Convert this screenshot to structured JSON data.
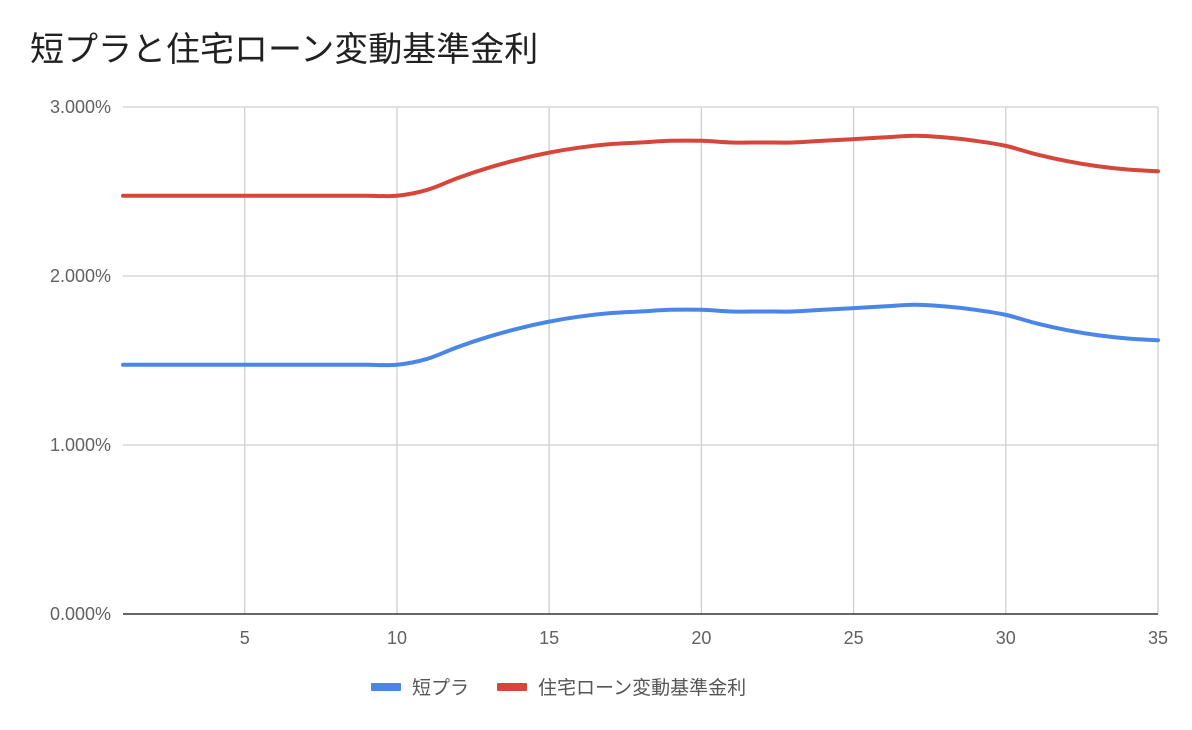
{
  "chart_data": {
    "type": "line",
    "title": "短プラと住宅ローン変動基準金利",
    "xlabel": "",
    "ylabel": "",
    "xlim": [
      1,
      35
    ],
    "ylim": [
      0,
      0.03
    ],
    "x_ticks": [
      5,
      10,
      15,
      20,
      25,
      30,
      35
    ],
    "x_tick_labels": [
      "5",
      "10",
      "15",
      "20",
      "25",
      "30",
      "35"
    ],
    "y_ticks": [
      0,
      0.01,
      0.02,
      0.03
    ],
    "y_tick_labels": [
      "0.000%",
      "1.000%",
      "2.000%",
      "3.000%"
    ],
    "grid": true,
    "legend_position": "bottom",
    "x": [
      1,
      2,
      3,
      4,
      5,
      6,
      7,
      8,
      9,
      10,
      11,
      12,
      13,
      14,
      15,
      16,
      17,
      18,
      19,
      20,
      21,
      22,
      23,
      24,
      25,
      26,
      27,
      28,
      29,
      30,
      31,
      32,
      33,
      34,
      35
    ],
    "series": [
      {
        "name": "短プラ",
        "color": "#4a86e8",
        "values": [
          0.01475,
          0.01475,
          0.01475,
          0.01475,
          0.01475,
          0.01475,
          0.01475,
          0.01475,
          0.01475,
          0.01475,
          0.0151,
          0.0158,
          0.0164,
          0.0169,
          0.0173,
          0.0176,
          0.0178,
          0.0179,
          0.018,
          0.018,
          0.0179,
          0.0179,
          0.0179,
          0.018,
          0.0181,
          0.0182,
          0.0183,
          0.0182,
          0.018,
          0.0177,
          0.0172,
          0.0168,
          0.0165,
          0.0163,
          0.0162
        ]
      },
      {
        "name": "住宅ローン変動基準金利",
        "color": "#d6463b",
        "values": [
          0.02475,
          0.02475,
          0.02475,
          0.02475,
          0.02475,
          0.02475,
          0.02475,
          0.02475,
          0.02475,
          0.02475,
          0.0251,
          0.0258,
          0.0264,
          0.0269,
          0.0273,
          0.0276,
          0.0278,
          0.0279,
          0.028,
          0.028,
          0.0279,
          0.0279,
          0.0279,
          0.028,
          0.0281,
          0.0282,
          0.0283,
          0.0282,
          0.028,
          0.0277,
          0.0272,
          0.0268,
          0.0265,
          0.0263,
          0.0262
        ]
      }
    ]
  }
}
